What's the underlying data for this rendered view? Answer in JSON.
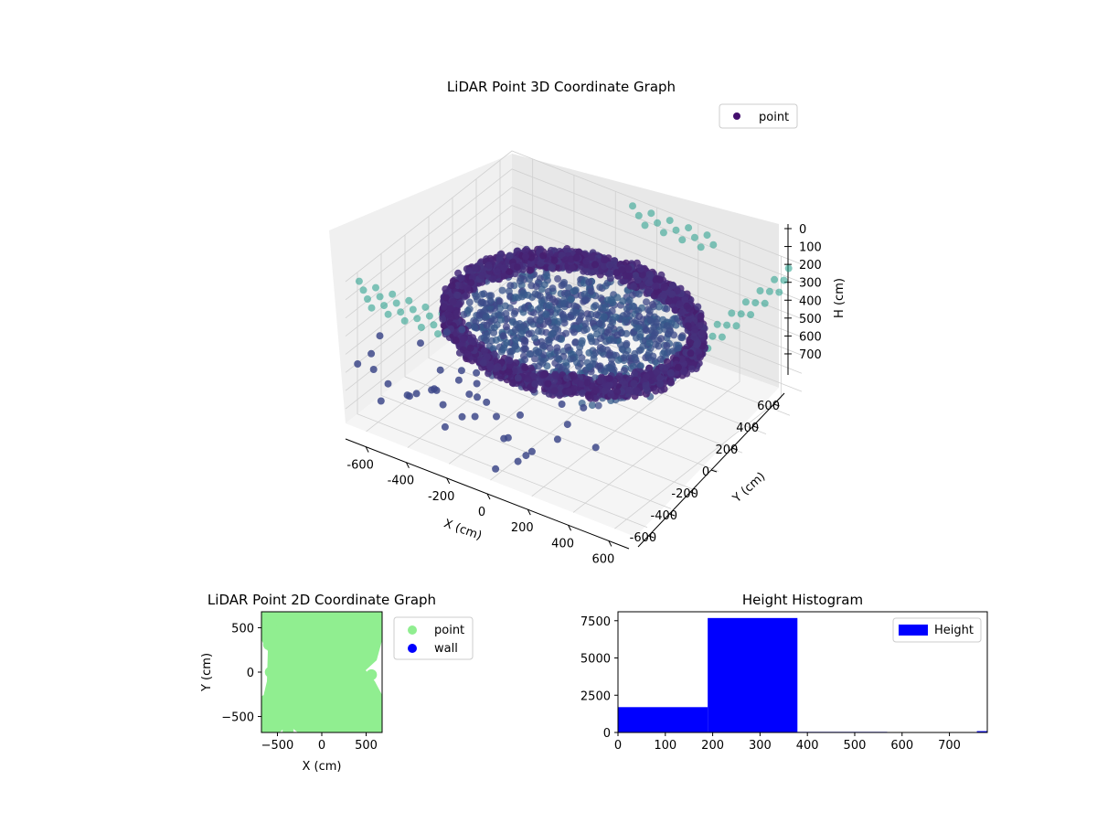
{
  "chart_data": [
    {
      "type": "scatter3d",
      "title": "LiDAR Point 3D Coordinate Graph",
      "xlabel": "X (cm)",
      "ylabel": "Y (cm)",
      "zlabel": "H (cm)",
      "xlim": [
        -700,
        700
      ],
      "ylim": [
        -700,
        700
      ],
      "zlim": [
        0,
        780
      ],
      "z_inverted": true,
      "x_ticks": [
        -600,
        -400,
        -200,
        0,
        200,
        400,
        600
      ],
      "y_ticks": [
        -600,
        -400,
        -200,
        0,
        200,
        400,
        600
      ],
      "z_ticks": [
        0,
        100,
        200,
        300,
        400,
        500,
        600,
        700
      ],
      "legend": {
        "position": "top-right",
        "entries": [
          {
            "label": "point",
            "color": "#440f6e"
          }
        ]
      },
      "colormap": "viridis",
      "ring": {
        "radius": 520,
        "height_range": [
          230,
          330
        ]
      },
      "grid": true
    },
    {
      "type": "scatter",
      "title": "LiDAR Point 2D Coordinate Graph",
      "xlabel": "X (cm)",
      "ylabel": "Y (cm)",
      "xlim": [
        -680,
        680
      ],
      "ylim": [
        -680,
        680
      ],
      "x_ticks": [
        -500,
        0,
        500
      ],
      "y_ticks": [
        -500,
        0,
        500
      ],
      "legend": {
        "position": "outside-right",
        "entries": [
          {
            "label": "point",
            "color": "#90ee90"
          },
          {
            "label": "wall",
            "color": "#0000ff"
          }
        ]
      }
    },
    {
      "type": "bar",
      "title": "Height Histogram",
      "xlabel": "",
      "ylabel": "",
      "xlim": [
        0,
        780
      ],
      "ylim": [
        0,
        8100
      ],
      "x_ticks": [
        0,
        100,
        200,
        300,
        400,
        500,
        600,
        700
      ],
      "y_ticks": [
        0,
        2500,
        5000,
        7500
      ],
      "bin_edges": [
        0,
        189.5,
        379,
        568.5,
        758,
        780
      ],
      "values": [
        1700,
        7680,
        40,
        15,
        90
      ],
      "color": "#0000ff",
      "legend": {
        "position": "top-right",
        "entries": [
          {
            "label": "Height",
            "color": "#0000ff"
          }
        ]
      }
    }
  ]
}
